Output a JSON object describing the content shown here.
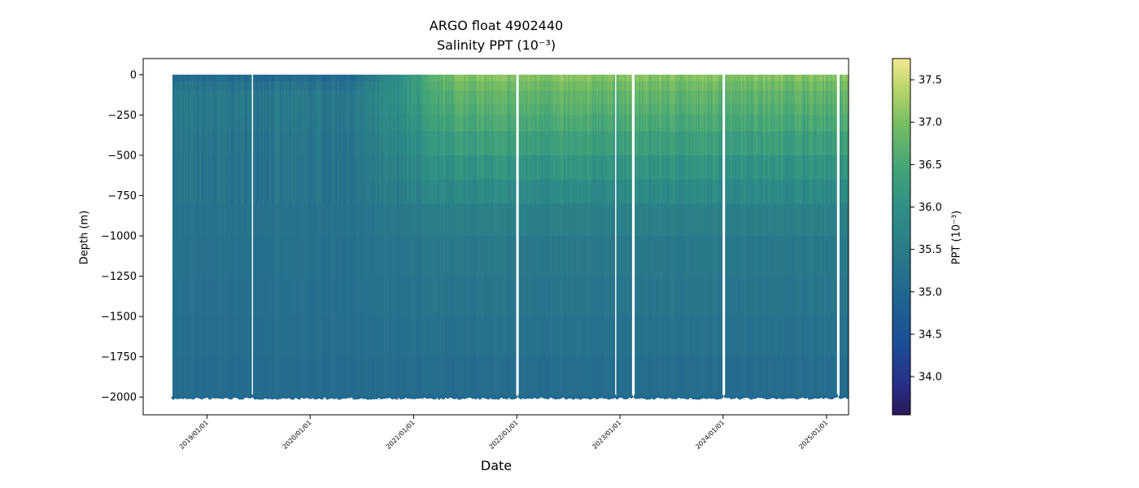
{
  "chart_data": {
    "type": "heatmap",
    "title": "ARGO float 4902440",
    "subtitle": "Salinity PPT (10⁻³)",
    "xlabel": "Date",
    "ylabel": "Depth (m)",
    "colorbar_label": "PPT (10⁻³)",
    "colormap": "haline",
    "x_range": [
      "2018-09-01",
      "2025-05-25"
    ],
    "ylim": [
      -2110,
      100
    ],
    "clim": [
      33.55,
      37.75
    ],
    "x_ticks": [
      "2019/01/01",
      "2020/01/01",
      "2021/01/01",
      "2022/01/01",
      "2023/01/01",
      "2024/01/01",
      "2025/01/01"
    ],
    "y_ticks": [
      0,
      -250,
      -500,
      -750,
      -1000,
      -1250,
      -1500,
      -1750,
      -2000
    ],
    "colorbar_ticks": [
      34.0,
      34.5,
      35.0,
      35.5,
      36.0,
      36.5,
      37.0,
      37.5
    ],
    "profile_start": "2018-09-01",
    "profile_end": "2025-05-25",
    "max_depth": -1990,
    "data_gaps": [
      {
        "start": "2019-06-05",
        "end": "2019-06-12"
      },
      {
        "start": "2021-12-28",
        "end": "2022-01-08"
      },
      {
        "start": "2022-12-10",
        "end": "2022-12-16"
      },
      {
        "start": "2023-02-12",
        "end": "2023-02-20"
      },
      {
        "start": "2023-12-28",
        "end": "2024-01-05"
      },
      {
        "start": "2025-02-05",
        "end": "2025-02-14"
      }
    ],
    "salinity_profile": [
      {
        "depth": 0,
        "early": 35.0,
        "late": 37.1
      },
      {
        "depth": -100,
        "early": 35.4,
        "late": 36.8
      },
      {
        "depth": -250,
        "early": 35.4,
        "late": 36.6
      },
      {
        "depth": -500,
        "early": 35.3,
        "late": 36.2
      },
      {
        "depth": -750,
        "early": 35.3,
        "late": 35.8
      },
      {
        "depth": -1000,
        "early": 35.25,
        "late": 35.45
      },
      {
        "depth": -1500,
        "early": 35.2,
        "late": 35.3
      },
      {
        "depth": -2000,
        "early": 35.1,
        "late": 35.1
      }
    ]
  }
}
